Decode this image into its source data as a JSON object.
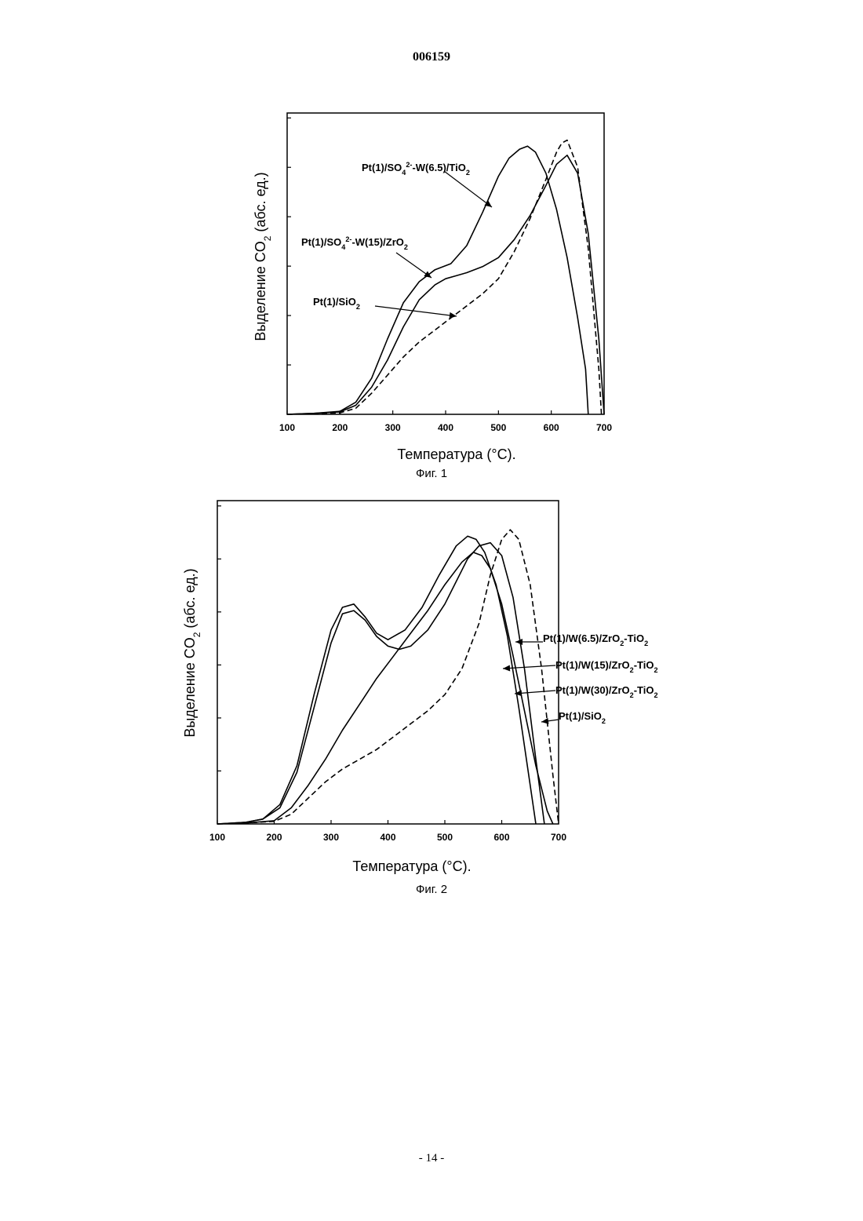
{
  "header": {
    "doc_number": "006159"
  },
  "footer": {
    "page_number": "- 14 -"
  },
  "chart_data": [
    {
      "type": "line",
      "caption": "Фиг. 1",
      "xlabel": "Температура (°C).",
      "ylabel": "Выделение CO₂ (абс. ед.)",
      "xlim": [
        100,
        700
      ],
      "ylim": [
        0,
        1.0
      ],
      "xticks": [
        100,
        200,
        300,
        400,
        500,
        600,
        700
      ],
      "series": [
        {
          "name": "Pt(1)/SO₄²⁻-W(6.5)/TiO₂",
          "style": "solid",
          "x": [
            100,
            150,
            200,
            230,
            260,
            290,
            320,
            350,
            380,
            410,
            440,
            470,
            500,
            520,
            540,
            555,
            570,
            590,
            610,
            630,
            650,
            665,
            670
          ],
          "y": [
            0.0,
            0.003,
            0.01,
            0.04,
            0.12,
            0.25,
            0.37,
            0.44,
            0.48,
            0.5,
            0.56,
            0.67,
            0.79,
            0.85,
            0.88,
            0.89,
            0.87,
            0.8,
            0.68,
            0.52,
            0.32,
            0.15,
            0.0
          ]
        },
        {
          "name": "Pt(1)/SO₄²⁻-W(15)/ZrO₂",
          "style": "solid",
          "x": [
            100,
            150,
            200,
            230,
            260,
            290,
            320,
            350,
            380,
            400,
            420,
            440,
            470,
            500,
            530,
            560,
            590,
            610,
            630,
            650,
            670,
            690,
            700
          ],
          "y": [
            0.0,
            0.003,
            0.008,
            0.03,
            0.09,
            0.18,
            0.29,
            0.38,
            0.43,
            0.45,
            0.46,
            0.47,
            0.49,
            0.52,
            0.58,
            0.66,
            0.76,
            0.83,
            0.86,
            0.8,
            0.6,
            0.25,
            0.0
          ]
        },
        {
          "name": "Pt(1)/SiO₂",
          "style": "dashed",
          "x": [
            100,
            150,
            200,
            230,
            260,
            290,
            320,
            350,
            380,
            410,
            440,
            470,
            500,
            530,
            560,
            590,
            610,
            620,
            630,
            650,
            670,
            690,
            695
          ],
          "y": [
            0.0,
            0.002,
            0.005,
            0.02,
            0.07,
            0.13,
            0.19,
            0.24,
            0.28,
            0.32,
            0.36,
            0.4,
            0.45,
            0.54,
            0.65,
            0.78,
            0.87,
            0.9,
            0.91,
            0.82,
            0.55,
            0.15,
            0.0
          ]
        }
      ],
      "labels": [
        "Pt(1)/SO₄²⁻-W(6.5)/TiO₂",
        "Pt(1)/SO₄²⁻-W(15)/ZrO₂",
        "Pt(1)/SiO₂"
      ],
      "grid": false
    },
    {
      "type": "line",
      "caption": "Фиг. 2",
      "xlabel": "Температура (°C).",
      "ylabel": "Выделение CO₂ (абс. ед.)",
      "xlim": [
        100,
        700
      ],
      "ylim": [
        0,
        1.0
      ],
      "xticks": [
        100,
        200,
        300,
        400,
        500,
        600,
        700
      ],
      "series": [
        {
          "name": "Pt(1)/W(6.5)/ZrO₂-TiO₂",
          "style": "solid",
          "x": [
            100,
            150,
            180,
            210,
            240,
            270,
            300,
            320,
            340,
            360,
            380,
            400,
            430,
            460,
            490,
            520,
            540,
            555,
            570,
            590,
            610,
            630,
            650,
            660
          ],
          "y": [
            0.0,
            0.005,
            0.015,
            0.06,
            0.18,
            0.4,
            0.6,
            0.67,
            0.68,
            0.64,
            0.59,
            0.57,
            0.6,
            0.67,
            0.77,
            0.86,
            0.89,
            0.88,
            0.84,
            0.74,
            0.58,
            0.36,
            0.12,
            0.0
          ]
        },
        {
          "name": "Pt(1)/W(15)/ZrO₂-TiO₂",
          "style": "solid",
          "x": [
            100,
            150,
            180,
            210,
            240,
            270,
            300,
            320,
            340,
            360,
            380,
            400,
            420,
            440,
            470,
            500,
            520,
            540,
            560,
            580,
            600,
            620,
            640,
            660,
            675
          ],
          "y": [
            0.0,
            0.005,
            0.015,
            0.05,
            0.16,
            0.36,
            0.56,
            0.65,
            0.66,
            0.63,
            0.58,
            0.55,
            0.54,
            0.55,
            0.6,
            0.68,
            0.75,
            0.82,
            0.86,
            0.87,
            0.83,
            0.7,
            0.48,
            0.2,
            0.0
          ]
        },
        {
          "name": "Pt(1)/W(30)/ZrO₂-TiO₂",
          "style": "solid",
          "x": [
            100,
            150,
            200,
            230,
            260,
            290,
            320,
            350,
            380,
            410,
            440,
            470,
            500,
            530,
            550,
            565,
            580,
            600,
            620,
            640,
            660,
            680,
            690
          ],
          "y": [
            0.0,
            0.003,
            0.01,
            0.05,
            0.12,
            0.2,
            0.29,
            0.37,
            0.45,
            0.52,
            0.59,
            0.66,
            0.74,
            0.81,
            0.84,
            0.83,
            0.79,
            0.68,
            0.52,
            0.35,
            0.18,
            0.04,
            0.0
          ]
        },
        {
          "name": "Pt(1)/SiO₂",
          "style": "dashed",
          "x": [
            100,
            150,
            200,
            230,
            260,
            290,
            320,
            350,
            380,
            410,
            440,
            470,
            500,
            530,
            560,
            580,
            600,
            615,
            630,
            650,
            670,
            690,
            700
          ],
          "y": [
            0.0,
            0.003,
            0.008,
            0.03,
            0.08,
            0.13,
            0.17,
            0.2,
            0.23,
            0.27,
            0.31,
            0.35,
            0.4,
            0.48,
            0.62,
            0.77,
            0.88,
            0.91,
            0.88,
            0.74,
            0.48,
            0.15,
            0.0
          ]
        }
      ],
      "labels": [
        "Pt(1)/W(6.5)/ZrO₂-TiO₂",
        "Pt(1)/W(15)/ZrO₂-TiO₂",
        "Pt(1)/W(30)/ZrO₂-TiO₂",
        "Pt(1)/SiO₂"
      ],
      "grid": false
    }
  ]
}
